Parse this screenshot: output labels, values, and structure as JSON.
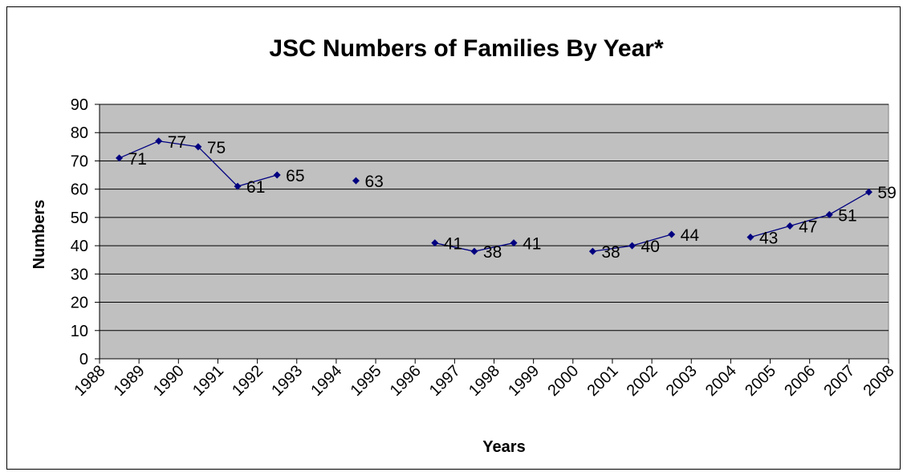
{
  "chart_data": {
    "type": "line",
    "title": "JSC Numbers of Families By Year*",
    "xlabel": "Years",
    "ylabel": "Numbers",
    "categories": [
      "1988",
      "1989",
      "1990",
      "1991",
      "1992",
      "1993",
      "1994",
      "1995",
      "1996",
      "1997",
      "1998",
      "1999",
      "2000",
      "2001",
      "2002",
      "2003",
      "2004",
      "2005",
      "2006",
      "2007",
      "2008"
    ],
    "series": [
      {
        "values": [
          71,
          77,
          75,
          61,
          65,
          null,
          63,
          null,
          41,
          38,
          41,
          null,
          38,
          40,
          44,
          null,
          43,
          47,
          51,
          59,
          null
        ],
        "color": "#000080"
      }
    ],
    "ylim": [
      0,
      90
    ],
    "yticks": [
      0,
      10,
      20,
      30,
      40,
      50,
      60,
      70,
      80,
      90
    ],
    "grid": true,
    "plot_background": "#c0c0c0",
    "legend": "none",
    "data_labels": true
  }
}
